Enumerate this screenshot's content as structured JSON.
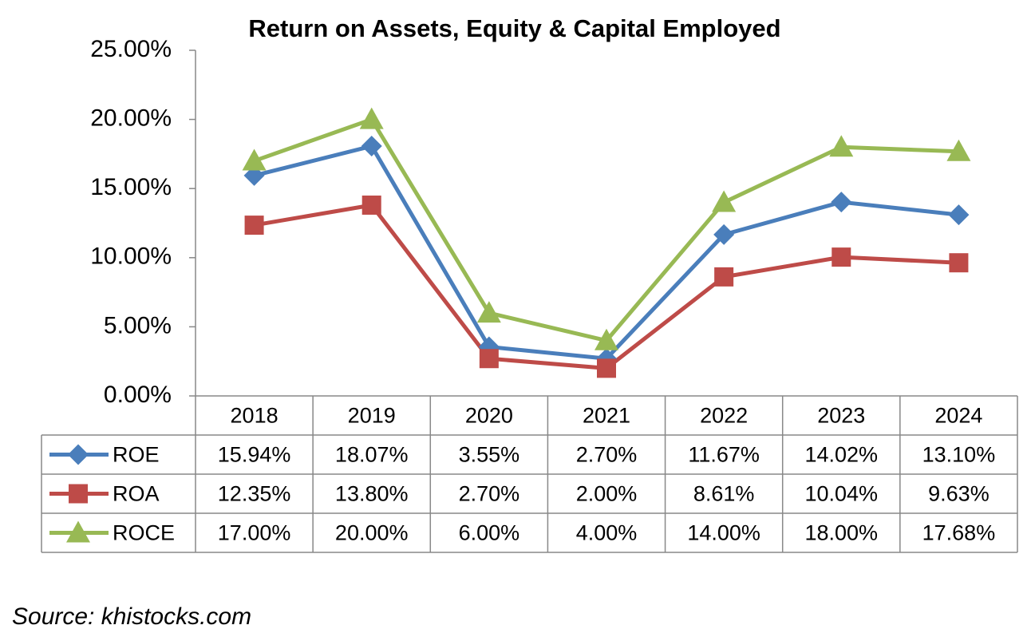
{
  "chart_data": {
    "type": "line",
    "title": "Return on Assets, Equity & Capital Employed",
    "source": "Source: khistocks.com",
    "categories": [
      "2018",
      "2019",
      "2020",
      "2021",
      "2022",
      "2023",
      "2024"
    ],
    "series": [
      {
        "name": "ROE",
        "color": "#4a7ebb",
        "marker": "diamond",
        "values": [
          15.94,
          18.07,
          3.55,
          2.7,
          11.67,
          14.02,
          13.1
        ],
        "value_labels": [
          "15.94%",
          "18.07%",
          "3.55%",
          "2.70%",
          "11.67%",
          "14.02%",
          "13.10%"
        ]
      },
      {
        "name": "ROA",
        "color": "#be4b48",
        "marker": "square",
        "values": [
          12.35,
          13.8,
          2.7,
          2.0,
          8.61,
          10.04,
          9.63
        ],
        "value_labels": [
          "12.35%",
          "13.80%",
          "2.70%",
          "2.00%",
          "8.61%",
          "10.04%",
          "9.63%"
        ]
      },
      {
        "name": "ROCE",
        "color": "#98b954",
        "marker": "triangle",
        "values": [
          17.0,
          20.0,
          6.0,
          4.0,
          14.0,
          18.0,
          17.68
        ],
        "value_labels": [
          "17.00%",
          "20.00%",
          "6.00%",
          "4.00%",
          "14.00%",
          "18.00%",
          "17.68%"
        ]
      }
    ],
    "ylim": [
      0,
      25
    ],
    "yticks": [
      {
        "value": 0,
        "label": "0.00%"
      },
      {
        "value": 5,
        "label": "5.00%"
      },
      {
        "value": 10,
        "label": "10.00%"
      },
      {
        "value": 15,
        "label": "15.00%"
      },
      {
        "value": 20,
        "label": "20.00%"
      },
      {
        "value": 25,
        "label": "25.00%"
      }
    ],
    "grid": false
  }
}
